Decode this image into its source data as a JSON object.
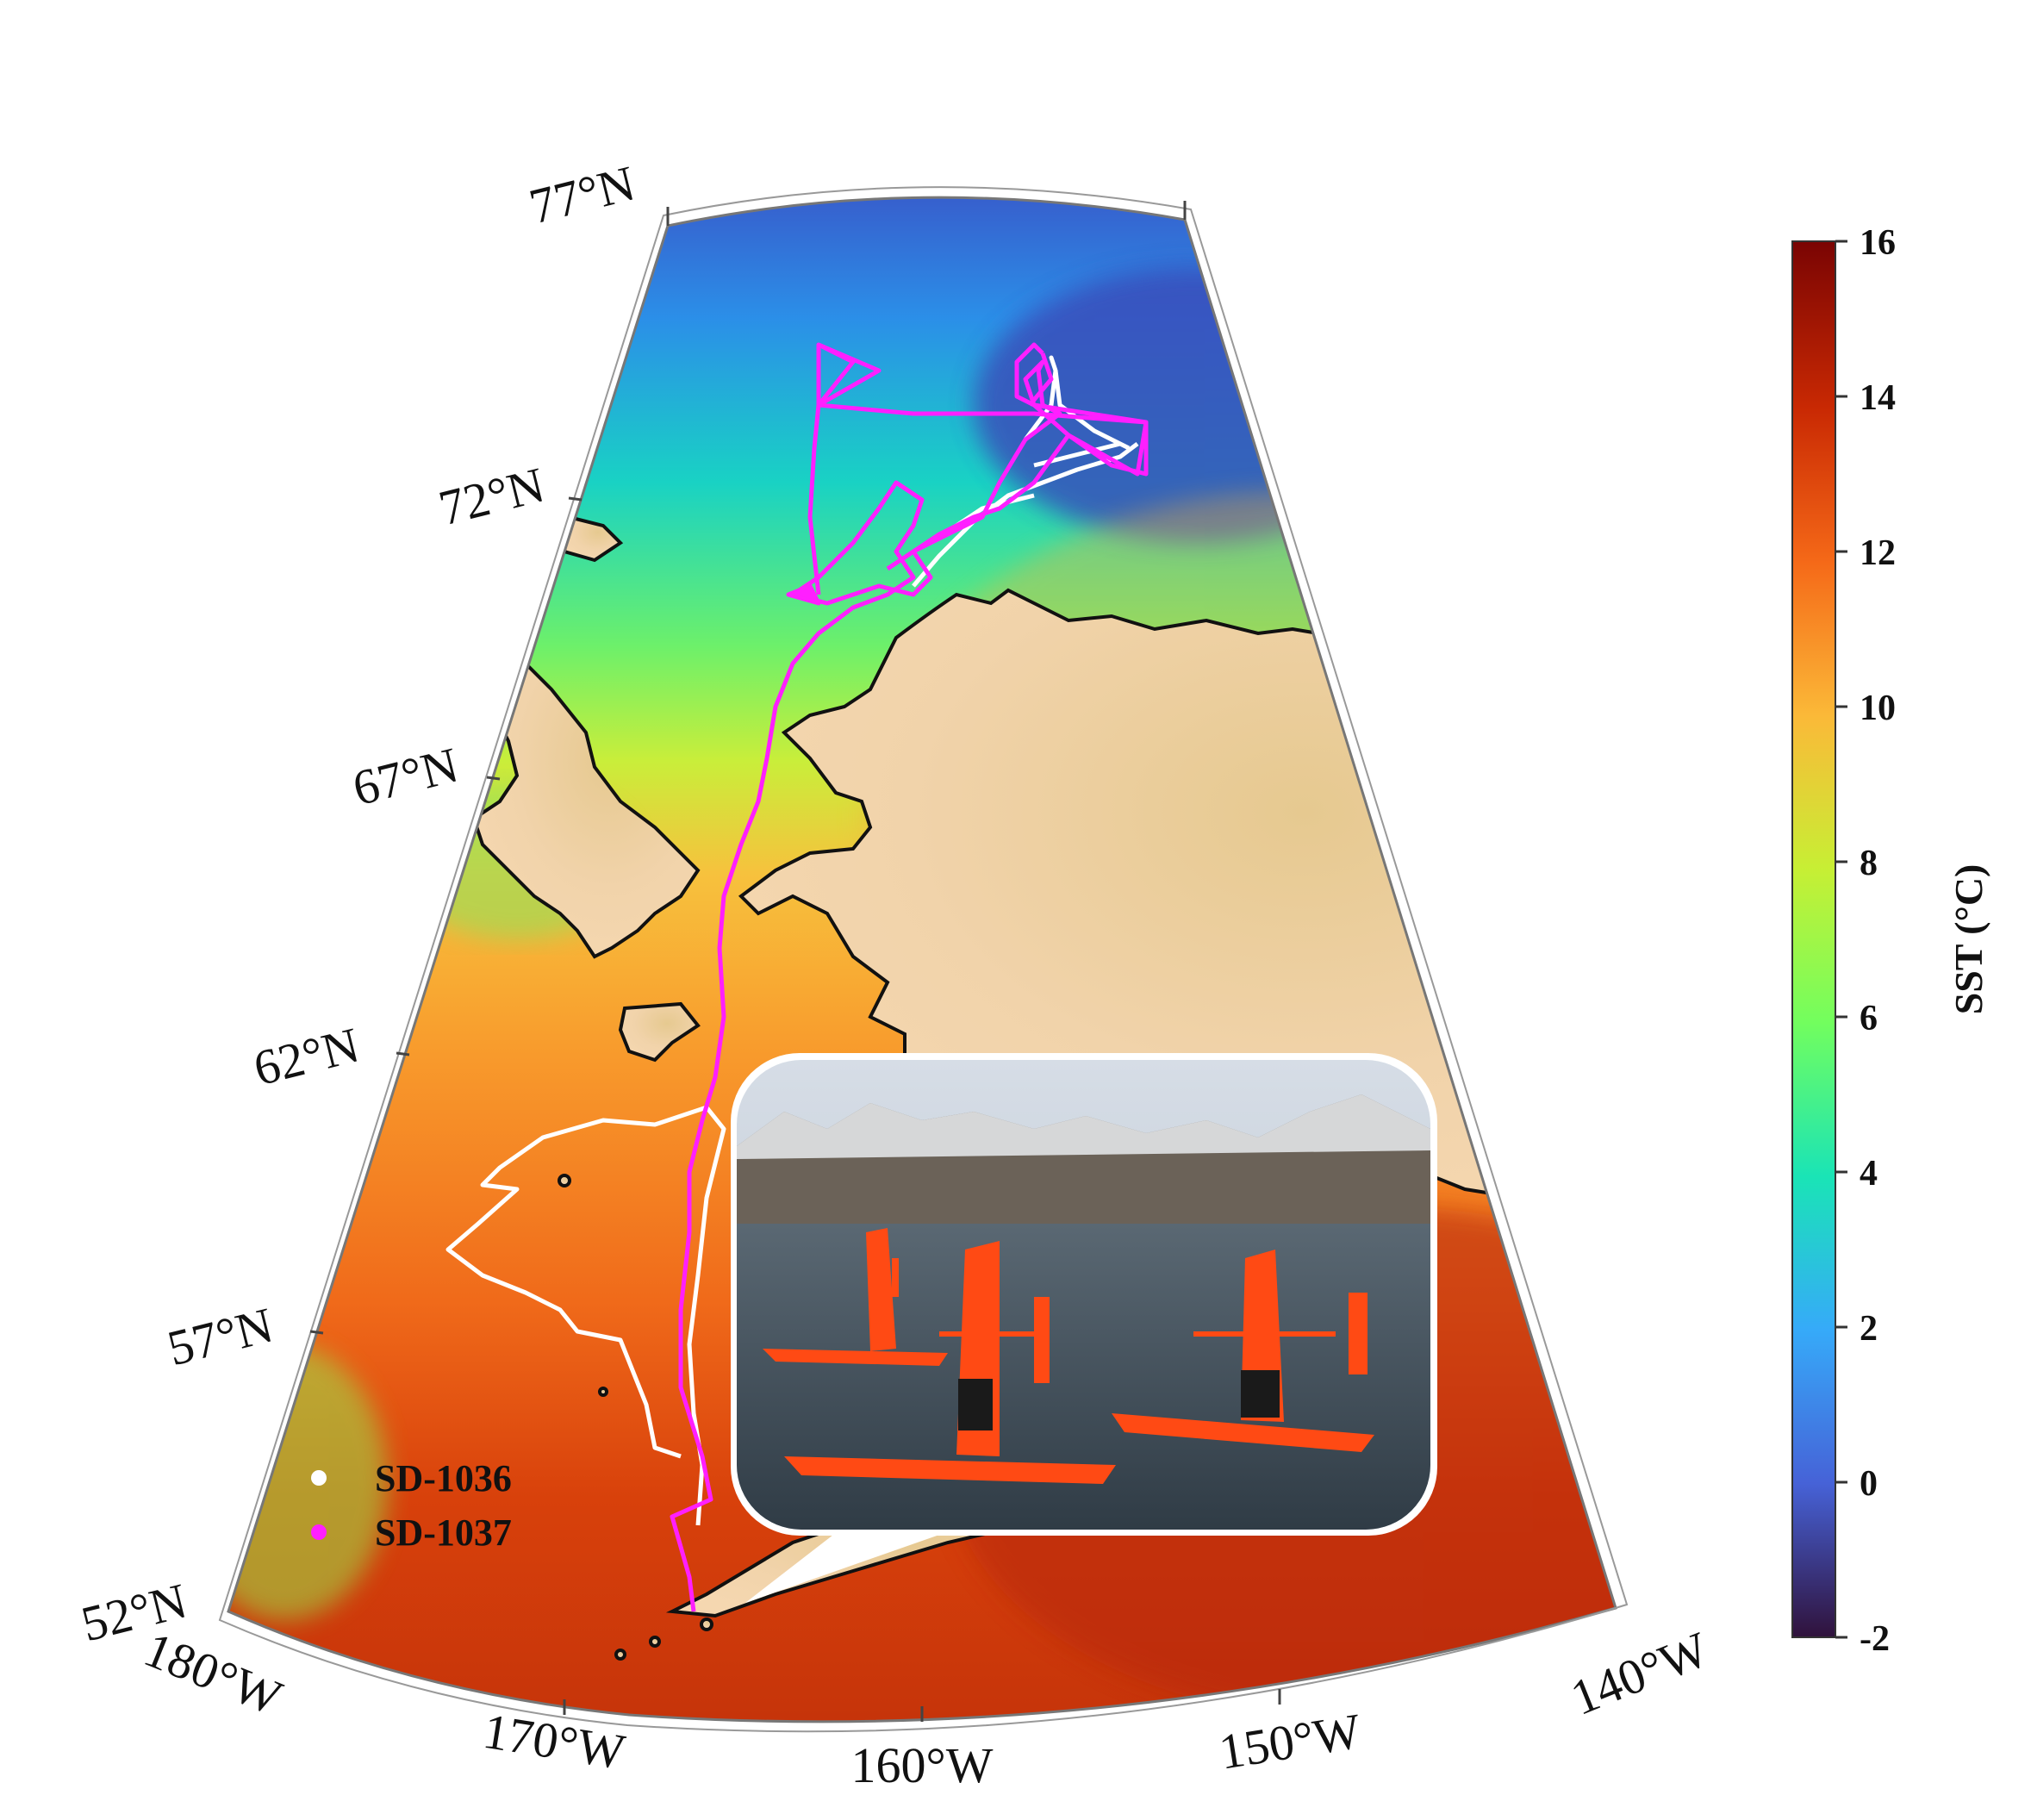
{
  "map": {
    "lat_labels": [
      "77°N",
      "72°N",
      "67°N",
      "62°N",
      "57°N",
      "52°N"
    ],
    "lon_labels": [
      "180°W",
      "170°W",
      "160°W",
      "150°W",
      "140°W"
    ],
    "extent": {
      "lon_min": -180,
      "lon_max": -140,
      "lat_min": 52,
      "lat_max": 77
    }
  },
  "colorbar": {
    "label": "SST (°C)",
    "ticks": [
      "16",
      "14",
      "12",
      "10",
      "8",
      "6",
      "4",
      "2",
      "0",
      "-2"
    ],
    "min": -2,
    "max": 16,
    "colormap": "turbo",
    "stops": [
      "#30123b",
      "#4662d7",
      "#36aaf9",
      "#1ae4b6",
      "#72fe5e",
      "#c7ef34",
      "#fbb938",
      "#f56918",
      "#c92903",
      "#7a0403"
    ]
  },
  "legend": {
    "items": [
      {
        "label": "SD-1036",
        "color": "#ffffff"
      },
      {
        "label": "SD-1037",
        "color": "#ff1fff"
      }
    ]
  },
  "land_color": "#f3d2a8",
  "inset_photo": {
    "subject": "saildrone-photo",
    "colors": {
      "sky": "#c9d2dc",
      "mountains": "#6b6258",
      "water": "#3f4c57",
      "drone": "#ff4a14"
    }
  }
}
